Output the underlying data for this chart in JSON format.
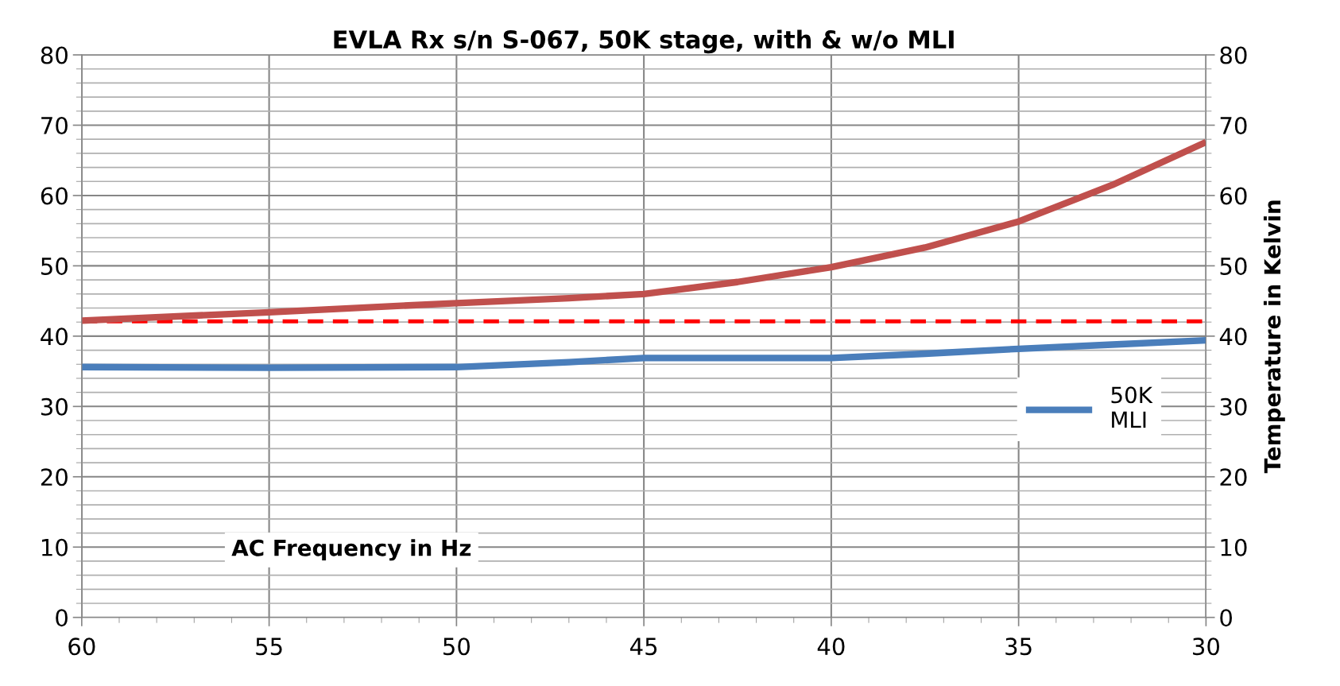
{
  "chart_data": {
    "type": "line",
    "title": "EVLA Rx s/n S-067, 50K stage, with & w/o MLI",
    "xlabel": "AC Frequency in Hz",
    "y2label": "Temperature in Kelvin",
    "x": [
      60,
      55,
      50,
      47,
      45,
      42.5,
      40,
      37.5,
      35,
      32.5,
      30
    ],
    "series": [
      {
        "name": "50K\nMLI",
        "color": "#4a7ebb",
        "values": [
          35.6,
          35.5,
          35.6,
          36.3,
          36.9,
          36.9,
          36.9,
          37.5,
          38.2,
          38.8,
          39.4
        ]
      },
      {
        "color": "#c0504d",
        "values": [
          42.2,
          43.4,
          44.7,
          45.4,
          46.0,
          47.7,
          49.8,
          52.6,
          56.3,
          61.5,
          67.6
        ]
      }
    ],
    "ref_lines": [
      {
        "axis": "y",
        "value": 42.1,
        "color": "#ff0000",
        "line_style": "dashed"
      }
    ],
    "xlim": [
      60,
      30
    ],
    "xticks": [
      60,
      55,
      50,
      45,
      40,
      35,
      30
    ],
    "ylim": [
      0,
      80
    ],
    "yticks": [
      0,
      10,
      20,
      30,
      40,
      50,
      60,
      70,
      80
    ],
    "y2lim": [
      0,
      80
    ],
    "y2ticks": [
      0,
      10,
      20,
      30,
      40,
      50,
      60,
      70,
      80
    ],
    "grid": true,
    "legend": "right"
  }
}
